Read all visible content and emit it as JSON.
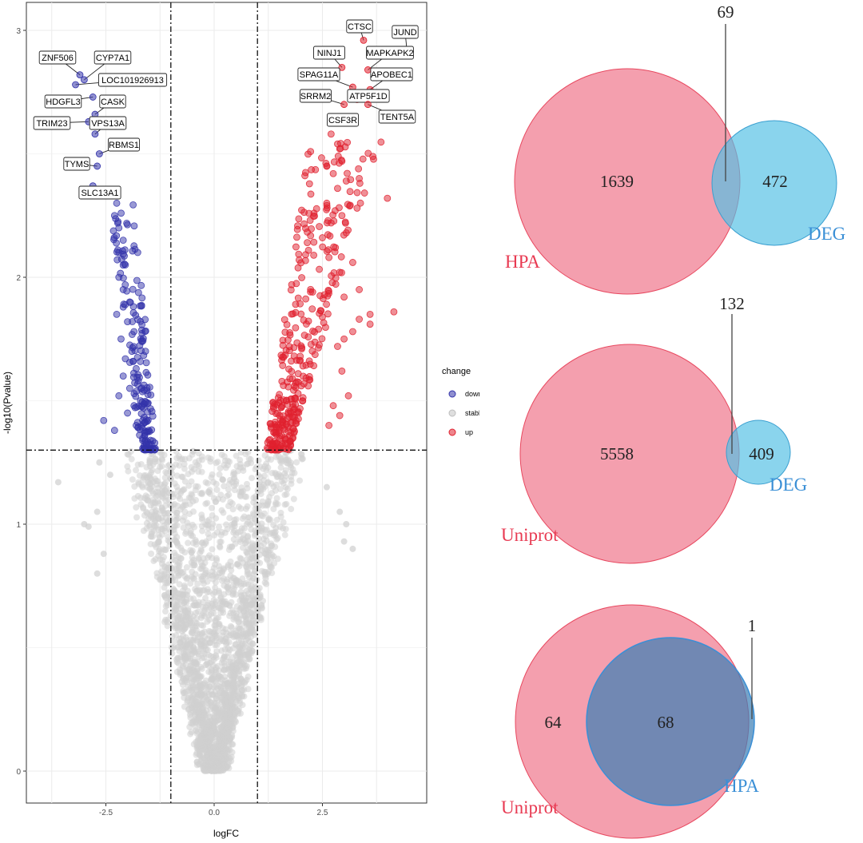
{
  "chart_data": [
    {
      "type": "scatter",
      "title": "",
      "xlabel": "logFC",
      "ylabel": "-log10(Pvalue)",
      "xlim": [
        -4.3,
        4.7
      ],
      "ylim": [
        -0.1,
        3.1
      ],
      "x_ticks": [
        "-2.5",
        "0.0",
        "2.5"
      ],
      "y_ticks": [
        "0",
        "1",
        "2",
        "3"
      ],
      "thresholds": {
        "logFC": [
          -1,
          1
        ],
        "neg_log10_p": 1.3
      },
      "grid": true,
      "legend": {
        "title": "change",
        "placement": "right",
        "entries": [
          {
            "label": "down",
            "color": "#3333aa"
          },
          {
            "label": "stable",
            "color": "#c8c8c8"
          },
          {
            "label": "up",
            "color": "#e0202e"
          }
        ]
      },
      "labeled_genes": [
        {
          "label": "ZNF506",
          "x": -3.1,
          "y": 2.82,
          "group": "down"
        },
        {
          "label": "CYP7A1",
          "x": -3.0,
          "y": 2.8,
          "group": "down"
        },
        {
          "label": "LOC101926913",
          "x": -3.2,
          "y": 2.78,
          "group": "down"
        },
        {
          "label": "HDGFL3",
          "x": -2.8,
          "y": 2.73,
          "group": "down"
        },
        {
          "label": "CASK",
          "x": -2.75,
          "y": 2.66,
          "group": "down"
        },
        {
          "label": "TRIM23",
          "x": -2.9,
          "y": 2.63,
          "group": "down"
        },
        {
          "label": "VPS13A",
          "x": -2.75,
          "y": 2.58,
          "group": "down"
        },
        {
          "label": "RBMS1",
          "x": -2.65,
          "y": 2.5,
          "group": "down"
        },
        {
          "label": "TYMS",
          "x": -2.7,
          "y": 2.45,
          "group": "down"
        },
        {
          "label": "SLC13A1",
          "x": -2.8,
          "y": 2.37,
          "group": "down"
        },
        {
          "label": "CTSC",
          "x": 3.45,
          "y": 2.96,
          "group": "up"
        },
        {
          "label": "JUND",
          "x": 4.45,
          "y": 2.92,
          "group": "up"
        },
        {
          "label": "NINJ1",
          "x": 2.95,
          "y": 2.85,
          "group": "up"
        },
        {
          "label": "MAPKAPK2",
          "x": 3.55,
          "y": 2.84,
          "group": "up"
        },
        {
          "label": "SPAG11A",
          "x": 3.2,
          "y": 2.77,
          "group": "up"
        },
        {
          "label": "APOBEC1",
          "x": 3.6,
          "y": 2.76,
          "group": "up"
        },
        {
          "label": "SRRM2",
          "x": 3.0,
          "y": 2.7,
          "group": "up"
        },
        {
          "label": "ATP5F1D",
          "x": 3.3,
          "y": 2.72,
          "group": "up"
        },
        {
          "label": "TENT5A",
          "x": 3.55,
          "y": 2.7,
          "group": "up"
        },
        {
          "label": "CSF3R",
          "x": 3.1,
          "y": 2.64,
          "group": "up"
        }
      ],
      "extra_up_points": [
        [
          2.7,
          2.58
        ],
        [
          2.85,
          2.54
        ],
        [
          2.9,
          2.52
        ],
        [
          2.95,
          2.47
        ],
        [
          2.6,
          2.45
        ],
        [
          2.75,
          2.42
        ],
        [
          3.35,
          2.4
        ],
        [
          3.05,
          2.39
        ],
        [
          2.85,
          2.36
        ],
        [
          4.0,
          2.32
        ],
        [
          2.6,
          2.3
        ],
        [
          3.3,
          2.28
        ],
        [
          2.95,
          2.25
        ],
        [
          2.7,
          2.22
        ],
        [
          3.05,
          2.18
        ],
        [
          2.5,
          2.16
        ],
        [
          2.8,
          2.12
        ],
        [
          2.65,
          2.08
        ],
        [
          3.2,
          2.06
        ],
        [
          2.9,
          2.02
        ],
        [
          3.35,
          1.95
        ],
        [
          3.0,
          1.92
        ],
        [
          4.15,
          1.86
        ],
        [
          3.6,
          1.85
        ],
        [
          3.35,
          1.83
        ],
        [
          3.6,
          1.81
        ],
        [
          3.2,
          1.78
        ],
        [
          3.0,
          1.75
        ],
        [
          2.85,
          1.72
        ],
        [
          2.95,
          1.62
        ],
        [
          3.1,
          1.52
        ],
        [
          2.75,
          1.48
        ],
        [
          2.9,
          1.44
        ],
        [
          2.65,
          1.4
        ]
      ],
      "extra_down_points": [
        [
          -2.25,
          2.3
        ],
        [
          -2.3,
          2.25
        ],
        [
          -2.2,
          2.2
        ],
        [
          -2.1,
          2.15
        ],
        [
          -2.2,
          2.1
        ],
        [
          -2.05,
          2.05
        ],
        [
          -2.2,
          2.0
        ],
        [
          -2.1,
          1.95
        ],
        [
          -1.95,
          1.9
        ],
        [
          -2.25,
          1.85
        ],
        [
          -2.0,
          1.82
        ],
        [
          -1.85,
          1.78
        ],
        [
          -2.15,
          1.75
        ],
        [
          -1.9,
          1.7
        ],
        [
          -2.05,
          1.67
        ],
        [
          -1.8,
          1.63
        ],
        [
          -2.1,
          1.6
        ],
        [
          -1.75,
          1.58
        ],
        [
          -1.95,
          1.55
        ],
        [
          -2.2,
          1.52
        ],
        [
          -1.7,
          1.5
        ],
        [
          -1.85,
          1.48
        ],
        [
          -2.0,
          1.45
        ],
        [
          -2.55,
          1.42
        ],
        [
          -1.65,
          1.42
        ],
        [
          -1.8,
          1.4
        ],
        [
          -2.3,
          1.38
        ],
        [
          -1.6,
          1.37
        ]
      ],
      "stable_outliers": [
        [
          -3.6,
          1.17
        ],
        [
          -2.65,
          1.25
        ],
        [
          -2.7,
          1.05
        ],
        [
          -2.9,
          0.99
        ],
        [
          -3.0,
          1.0
        ],
        [
          -2.55,
          0.88
        ],
        [
          -2.7,
          0.8
        ],
        [
          3.0,
          0.93
        ],
        [
          3.05,
          1.0
        ],
        [
          3.2,
          0.9
        ],
        [
          2.9,
          1.05
        ],
        [
          -2.4,
          1.2
        ],
        [
          2.6,
          1.15
        ]
      ]
    },
    {
      "type": "venn",
      "sets": [
        {
          "name": "HPA",
          "color": "#f07a8f"
        },
        {
          "name": "DEG",
          "color": "#5ec4e6"
        }
      ],
      "regions": {
        "only_first": "1639",
        "only_second": "472",
        "overlap": "69"
      }
    },
    {
      "type": "venn",
      "sets": [
        {
          "name": "Uniprot",
          "color": "#f07a8f"
        },
        {
          "name": "DEG",
          "color": "#5ec4e6"
        }
      ],
      "regions": {
        "only_first": "5558",
        "only_second": "409",
        "overlap": "132"
      }
    },
    {
      "type": "venn",
      "sets": [
        {
          "name": "Uniprot",
          "color": "#f07a8f"
        },
        {
          "name": "HPA",
          "color": "#4f86b6"
        }
      ],
      "regions": {
        "only_first": "64",
        "only_second": "1",
        "overlap": "68"
      }
    }
  ]
}
